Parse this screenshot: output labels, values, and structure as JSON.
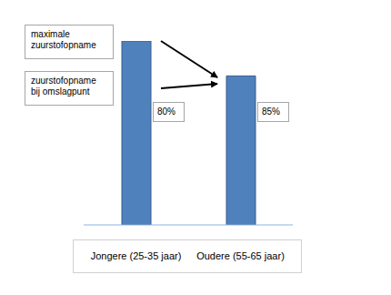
{
  "chart_data": {
    "type": "bar",
    "categories": [
      "Jongere (25-35 jaar)",
      "Oudere (55-65 jaar)"
    ],
    "values": [
      100,
      81
    ],
    "color": "#4f81bd",
    "ylim": [
      0,
      100
    ],
    "tick_labels": "x",
    "grid": false,
    "annotations": {
      "callouts": [
        "maximale zuurstofopname",
        "zuurstofopname bij omslagpunt"
      ],
      "bar_notes": [
        "80%",
        "85%"
      ]
    }
  }
}
